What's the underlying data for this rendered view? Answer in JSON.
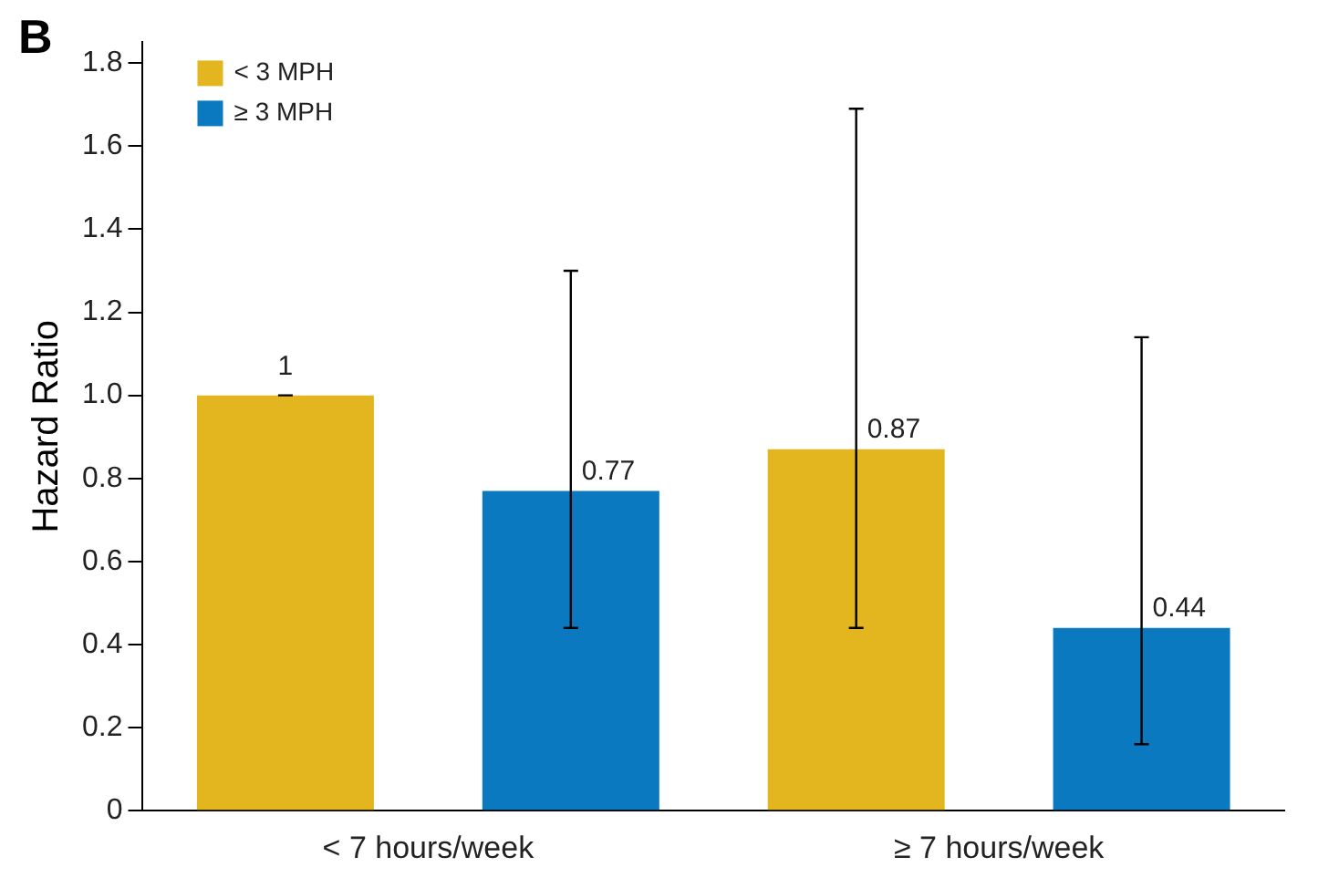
{
  "chart_data": {
    "type": "bar",
    "title": "B",
    "ylabel": "Hazard Ratio",
    "categories": [
      "< 7 hours/week",
      "≥ 7 hours/week"
    ],
    "series": [
      {
        "name": "< 3 MPH",
        "color": "#e3b51e",
        "values": [
          1,
          0.87
        ],
        "errors": [
          [
            1,
            1
          ],
          [
            0.44,
            1.69
          ]
        ],
        "value_labels": [
          "1",
          "0.87"
        ]
      },
      {
        "name": "≥ 3 MPH",
        "color": "#0a79c0",
        "values": [
          0.77,
          0.44
        ],
        "errors": [
          [
            0.44,
            1.3
          ],
          [
            0.16,
            1.14
          ]
        ],
        "value_labels": [
          "0.77",
          "0.44"
        ]
      }
    ],
    "ylim": [
      0,
      1.85
    ],
    "yticks": [
      {
        "value": 0,
        "label": "0"
      },
      0.2,
      0.4,
      0.6,
      0.8,
      {
        "value": 1,
        "label": "1.0"
      },
      1.2,
      1.4,
      1.6,
      1.8
    ],
    "legend": "top left",
    "grid": false
  }
}
